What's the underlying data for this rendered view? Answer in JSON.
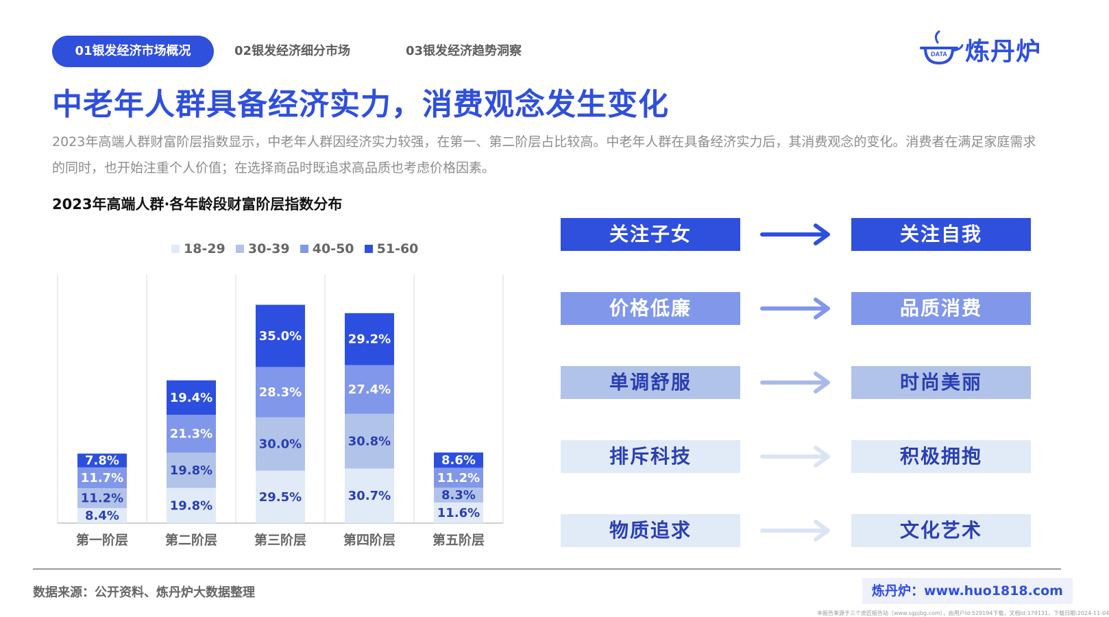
{
  "nav": {
    "tabs": [
      {
        "label": "01银发经济市场概况",
        "active": true
      },
      {
        "label": "02银发经济细分市场",
        "active": false
      },
      {
        "label": "03银发经济趋势洞察",
        "active": false
      }
    ]
  },
  "logo": {
    "badge": "DATA",
    "name": "炼丹炉"
  },
  "headline": "中老年人群具备经济实力，消费观念发生变化",
  "description": "2023年高端人群财富阶层指数显示，中老年人群因经济实力较强，在第一、第二阶层占比较高。中老年人群在具备经济实力后，其消费观念的变化。消费者在满足家庭需求的同时，也开始注重个人价值；在选择商品时既追求高品质也考虑价格因素。",
  "chart_title": "2023年高端人群·各年龄段财富阶层指数分布",
  "chart_data": {
    "type": "bar",
    "stacked": true,
    "title": "2023年高端人群·各年龄段财富阶层指数分布",
    "categories": [
      "第一阶层",
      "第二阶层",
      "第三阶层",
      "第四阶层",
      "第五阶层"
    ],
    "series": [
      {
        "name": "18-29",
        "color": "#e1eaf7",
        "values": [
          8.4,
          19.8,
          29.5,
          30.7,
          11.6
        ]
      },
      {
        "name": "30-39",
        "color": "#b2c3ea",
        "values": [
          11.2,
          19.8,
          30.0,
          30.8,
          8.3
        ]
      },
      {
        "name": "40-50",
        "color": "#8197ea",
        "values": [
          11.7,
          21.3,
          28.3,
          27.4,
          11.2
        ]
      },
      {
        "name": "51-60",
        "color": "#2d4fe0",
        "values": [
          7.8,
          19.4,
          35.0,
          29.2,
          8.6
        ]
      }
    ],
    "value_suffix": "%",
    "legend_position": "top",
    "grid": "vertical category separators",
    "ylim": [
      0,
      140
    ]
  },
  "shifts": [
    {
      "from": "关注子女",
      "to": "关注自我",
      "bg": "#2f4fdd",
      "fg": "#ffffff",
      "arrow": "#2f4fdd"
    },
    {
      "from": "价格低廉",
      "to": "品质消费",
      "bg": "#8197ea",
      "fg": "#ffffff",
      "arrow": "#8197ea"
    },
    {
      "from": "单调舒服",
      "to": "时尚美丽",
      "bg": "#b2c3ea",
      "fg": "#2a3fb0",
      "arrow": "#a9b9ec"
    },
    {
      "from": "排斥科技",
      "to": "积极拥抱",
      "bg": "#e1eaf7",
      "fg": "#2a3fb0",
      "arrow": "#dbe4f5"
    },
    {
      "from": "物质追求",
      "to": "文化艺术",
      "bg": "#e1eaf7",
      "fg": "#2a3fb0",
      "arrow": "#dbe4f5"
    }
  ],
  "footer": {
    "source": "数据来源：公开资料、炼丹炉大数据整理",
    "site": "炼丹炉：www.huo1818.com",
    "fine_print": "本报告来源于三个皮匠报告站（www.sgpjbg.com），由用户Id:529194下载，文档Id:179131，下载日期:2024-11-04"
  }
}
